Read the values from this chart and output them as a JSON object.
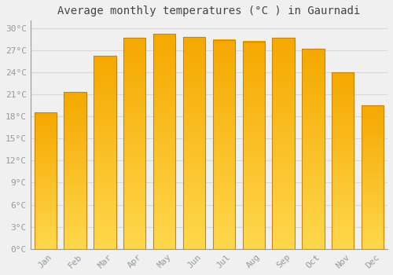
{
  "title": "Average monthly temperatures (°C ) in Gaurnadi",
  "months": [
    "Jan",
    "Feb",
    "Mar",
    "Apr",
    "May",
    "Jun",
    "Jul",
    "Aug",
    "Sep",
    "Oct",
    "Nov",
    "Dec"
  ],
  "temperatures": [
    18.5,
    21.3,
    26.2,
    28.7,
    29.2,
    28.8,
    28.4,
    28.2,
    28.7,
    27.2,
    24.0,
    19.5
  ],
  "bar_color_top": "#F5A800",
  "bar_color_bottom": "#FFD84D",
  "bar_border_color": "#C8850A",
  "background_color": "#f0f0f0",
  "plot_bg_color": "#f0f0f0",
  "grid_color": "#d8d8d8",
  "title_color": "#444444",
  "tick_color": "#999999",
  "ylim": [
    0,
    31
  ],
  "yticks": [
    0,
    3,
    6,
    9,
    12,
    15,
    18,
    21,
    24,
    27,
    30
  ],
  "ytick_labels": [
    "0°C",
    "3°C",
    "6°C",
    "9°C",
    "12°C",
    "15°C",
    "18°C",
    "21°C",
    "24°C",
    "27°C",
    "30°C"
  ]
}
